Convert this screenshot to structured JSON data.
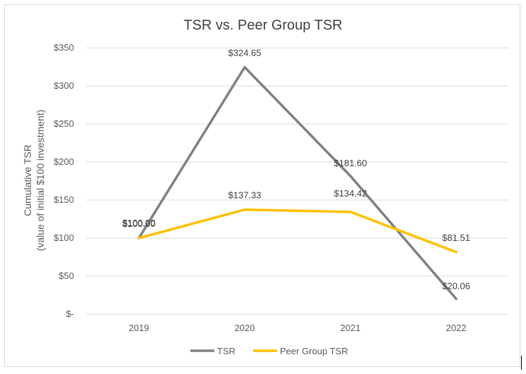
{
  "chart_data": {
    "type": "line",
    "title": "TSR vs. Peer Group TSR",
    "ylabel_line1": "Cumulative TSR",
    "ylabel_line2": "(value of initial $100 investment)",
    "xlabel": "",
    "categories": [
      "2019",
      "2020",
      "2021",
      "2022"
    ],
    "ylim": [
      0,
      350
    ],
    "yticks": [
      0,
      50,
      100,
      150,
      200,
      250,
      300,
      350
    ],
    "ytick_labels": [
      "$-",
      "$50",
      "$100",
      "$150",
      "$200",
      "$250",
      "$300",
      "$350"
    ],
    "grid": true,
    "legend_position": "bottom",
    "series": [
      {
        "name": "TSR",
        "color": "#808080",
        "values": [
          100.0,
          324.65,
          181.6,
          20.06
        ],
        "labels": [
          "$100.00",
          "$324.65",
          "$181.60",
          "$20.06"
        ]
      },
      {
        "name": "Peer Group TSR",
        "color": "#FFC000",
        "values": [
          100.0,
          137.33,
          134.42,
          81.51
        ],
        "labels": [
          "$100.00",
          "$137.33",
          "$134.42",
          "$81.51"
        ]
      }
    ]
  }
}
